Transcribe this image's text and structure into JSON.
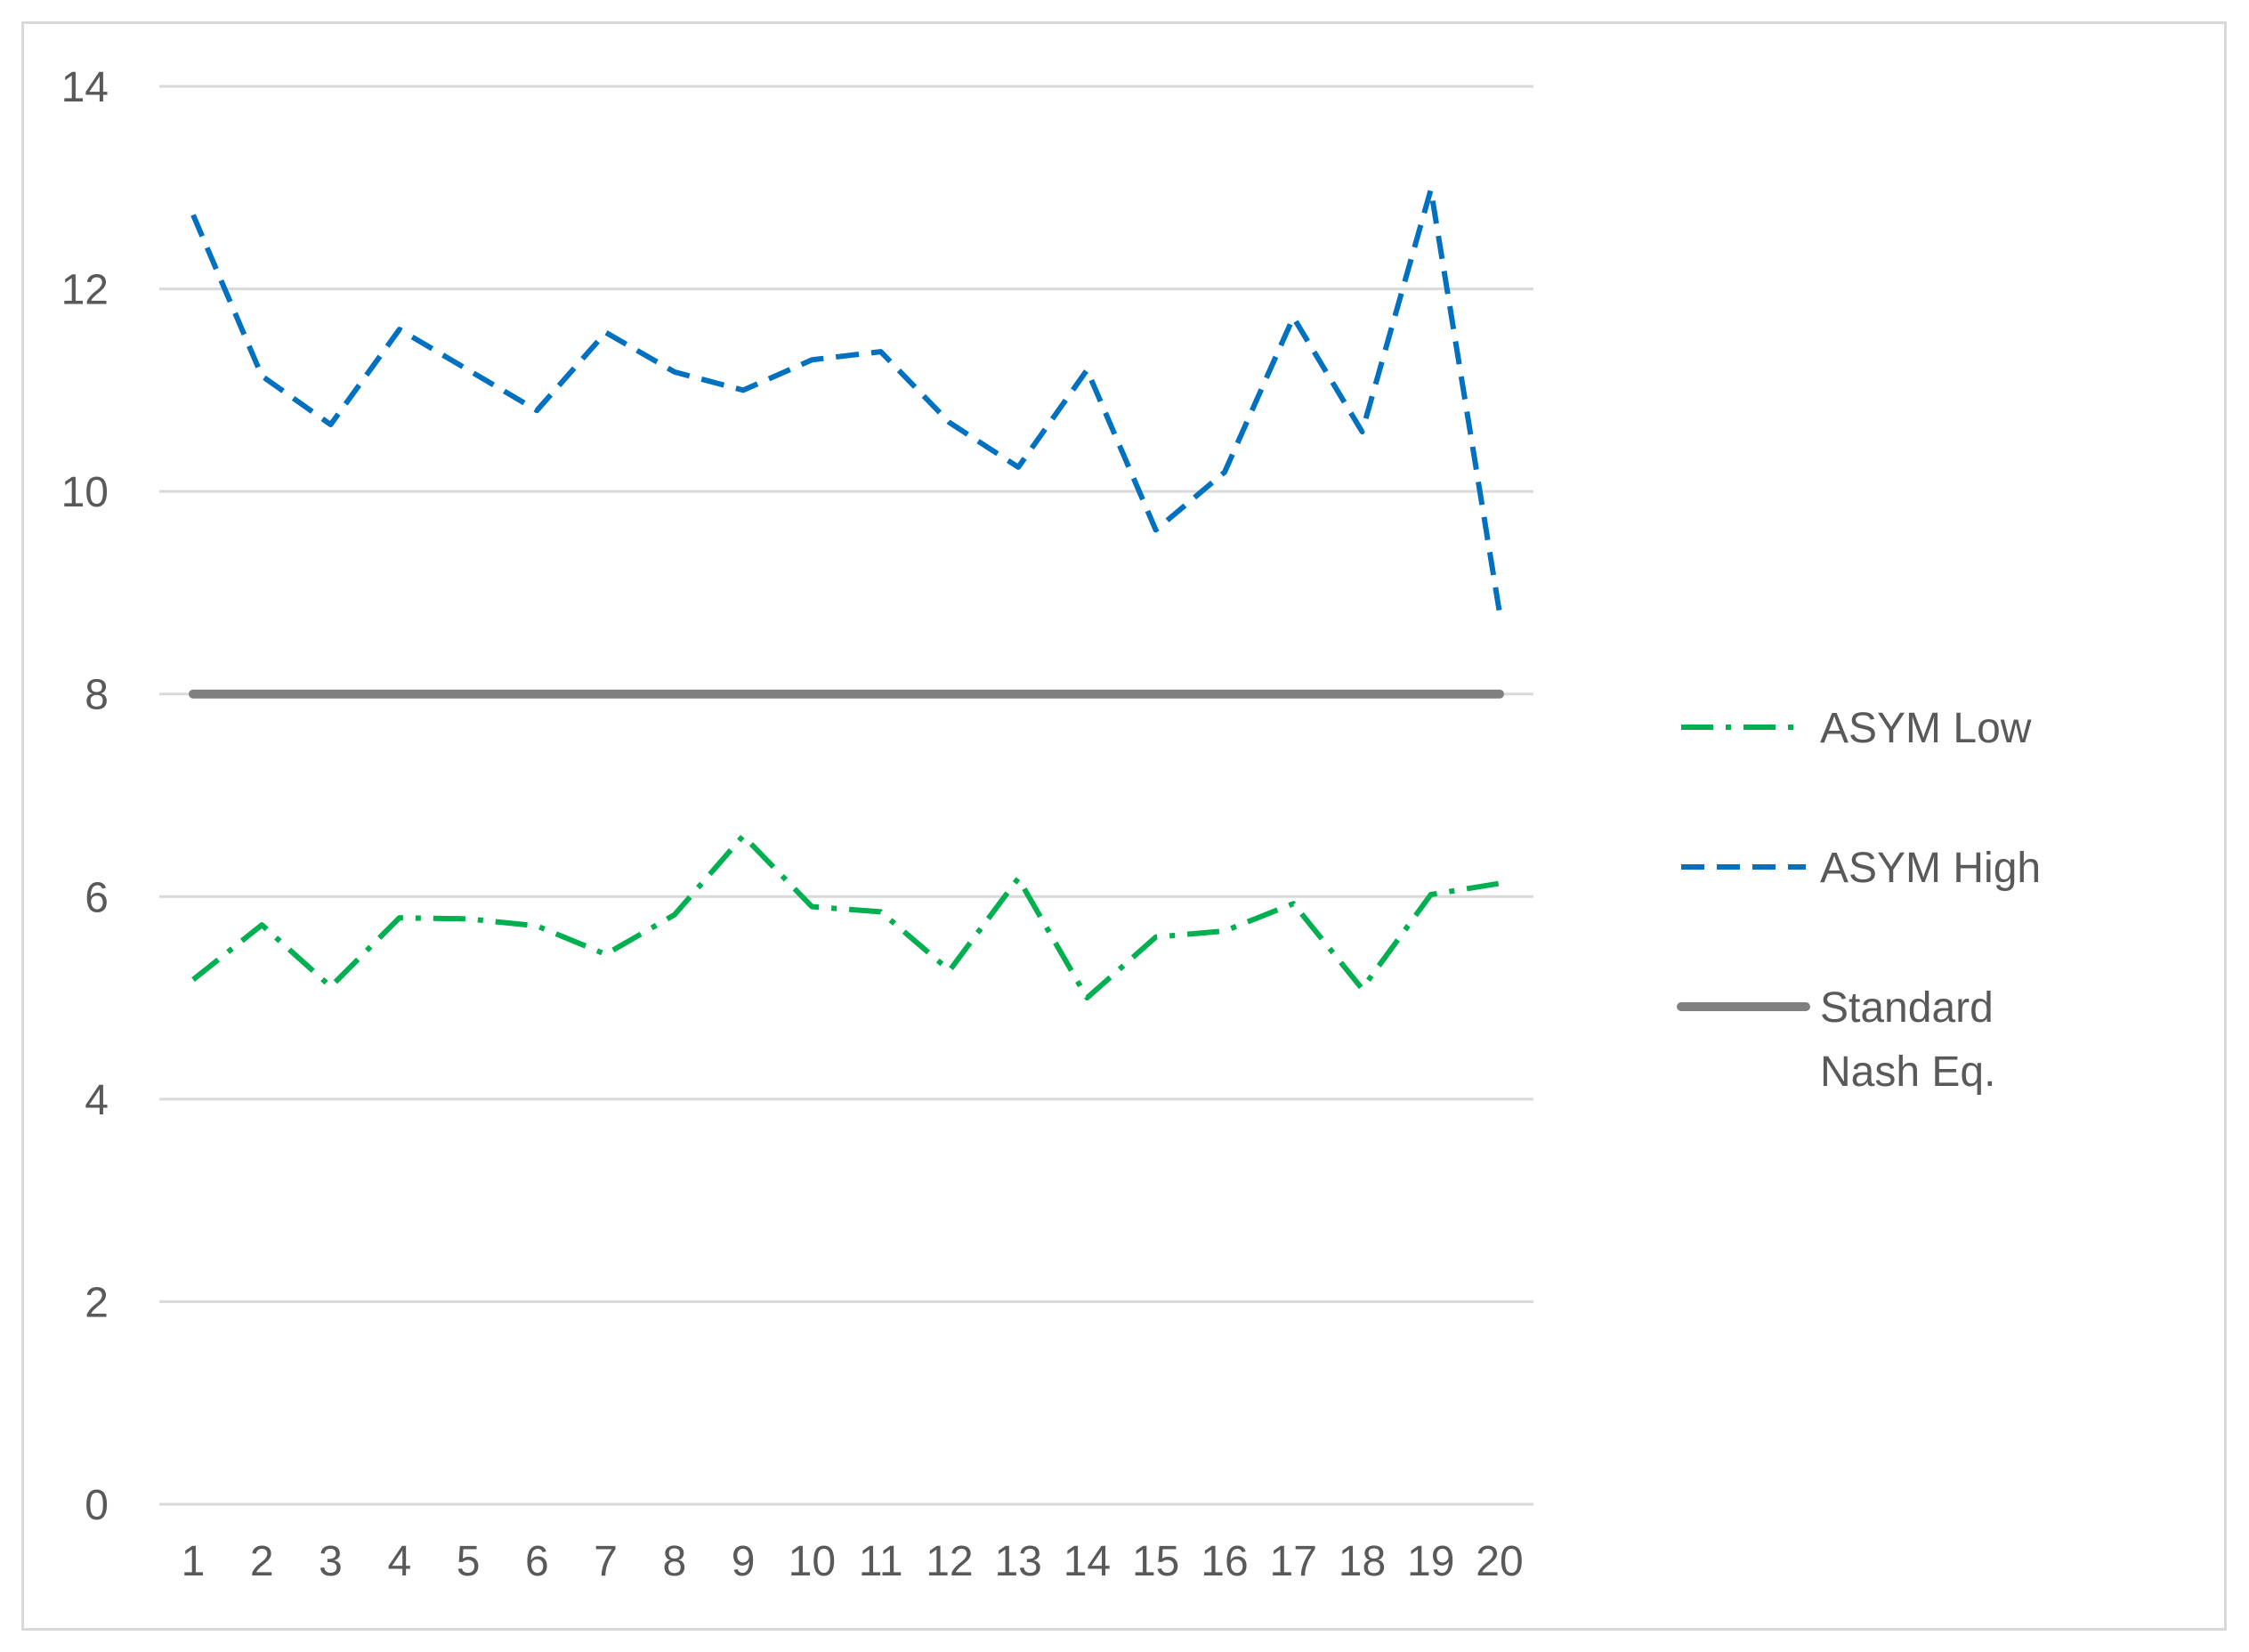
{
  "chart_data": {
    "type": "line",
    "title": "",
    "xlabel": "",
    "ylabel": "",
    "categories": [
      "1",
      "2",
      "3",
      "4",
      "5",
      "6",
      "7",
      "8",
      "9",
      "10",
      "11",
      "12",
      "13",
      "14",
      "15",
      "16",
      "17",
      "18",
      "19",
      "20"
    ],
    "ylim": [
      0,
      14
    ],
    "yticks": [
      0,
      2,
      4,
      6,
      8,
      10,
      12,
      14
    ],
    "grid": "horizontal",
    "legend_position": "right",
    "series": [
      {
        "name": "ASYM Low",
        "color": "#00b050",
        "dash": "dash-dot",
        "values": [
          5.18,
          5.72,
          5.11,
          5.79,
          5.78,
          5.71,
          5.43,
          5.82,
          6.6,
          5.9,
          5.85,
          5.27,
          6.18,
          5.0,
          5.6,
          5.66,
          5.93,
          5.09,
          6.02,
          6.13
        ]
      },
      {
        "name": "ASYM High",
        "color": "#0070c0",
        "dash": "dash",
        "values": [
          12.73,
          11.14,
          10.66,
          11.6,
          11.2,
          10.8,
          11.57,
          11.18,
          11.0,
          11.3,
          11.38,
          10.68,
          10.24,
          11.2,
          9.62,
          10.19,
          11.72,
          10.59,
          12.98,
          8.8
        ]
      },
      {
        "name": "Standard Nash Eq.",
        "color": "#808080",
        "dash": "solid",
        "values": [
          8,
          8,
          8,
          8,
          8,
          8,
          8,
          8,
          8,
          8,
          8,
          8,
          8,
          8,
          8,
          8,
          8,
          8,
          8,
          8
        ]
      }
    ]
  },
  "legend": {
    "items": [
      {
        "lines": [
          "ASYM Low"
        ]
      },
      {
        "lines": [
          "ASYM High"
        ]
      },
      {
        "lines": [
          "Standard",
          "Nash Eq."
        ]
      }
    ]
  }
}
